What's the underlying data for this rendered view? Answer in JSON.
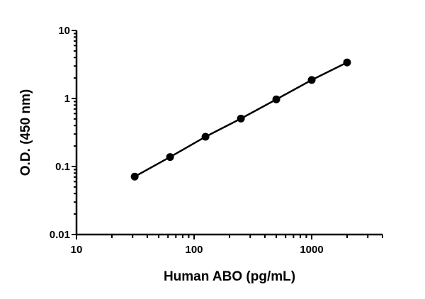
{
  "chart_data": {
    "type": "line",
    "title": "",
    "xlabel": "Human ABO (pg/mL)",
    "ylabel": "O.D. (450 nm)",
    "x_scale": "log",
    "y_scale": "log",
    "xlim": [
      10,
      4000
    ],
    "ylim": [
      0.01,
      10
    ],
    "x_ticks": [
      {
        "v": 10,
        "label": "10"
      },
      {
        "v": 100,
        "label": "100"
      },
      {
        "v": 1000,
        "label": "1000"
      }
    ],
    "y_ticks": [
      {
        "v": 10,
        "label": "10"
      },
      {
        "v": 1,
        "label": "1"
      },
      {
        "v": 0.1,
        "label": "0.1"
      },
      {
        "v": 0.01,
        "label": "0.01"
      }
    ],
    "grid": false,
    "series": [
      {
        "x": [
          31.25,
          62.5,
          125,
          250,
          500,
          1000,
          2000
        ],
        "y": [
          0.071,
          0.138,
          0.274,
          0.506,
          0.97,
          1.87,
          3.39
        ],
        "color": "#000000",
        "marker": "circle"
      }
    ]
  }
}
